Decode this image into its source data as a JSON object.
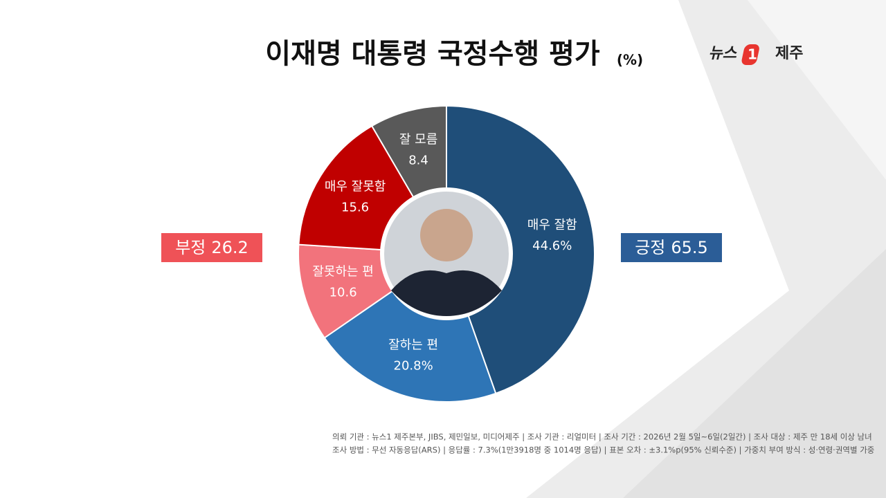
{
  "chart_data": {
    "type": "pie",
    "donut": true,
    "title": "이재명 대통령 국정수행 평가",
    "unit": "(%)",
    "logo": {
      "left": "뉴스",
      "mark": "1",
      "right": "제주"
    },
    "categories": [
      "매우 잘함",
      "잘하는 편",
      "잘못하는 편",
      "매우 잘못함",
      "잘 모름"
    ],
    "values": [
      44.6,
      20.8,
      10.6,
      15.6,
      8.4
    ],
    "value_labels": [
      "44.6%",
      "20.8%",
      "10.6",
      "15.6",
      "8.4"
    ],
    "colors": [
      "#1f4e79",
      "#2e75b6",
      "#f2737c",
      "#c00000",
      "#595959"
    ],
    "groups": [
      {
        "label": "긍정",
        "value": 65.5,
        "color": "#2b5d97"
      },
      {
        "label": "부정",
        "value": 26.2,
        "color": "#ef5257"
      }
    ],
    "footer": [
      "의뢰 기관 : 뉴스1 제주본부, JIBS, 제민일보, 미디어제주 | 조사 기관 : 리얼미터 | 조사 기간 : 2026년 2월 5일~6일(2일간) | 조사 대상 : 제주 만 18세 이상 남녀",
      "조사 방법 : 무선 자동응답(ARS) | 응답률 : 7.3%(1만3918명 중 1014명 응답) | 표본 오차 : ±3.1%p(95% 신뢰수준) | 가중치 부여 방식 : 성·연령·권역별 가중"
    ]
  }
}
